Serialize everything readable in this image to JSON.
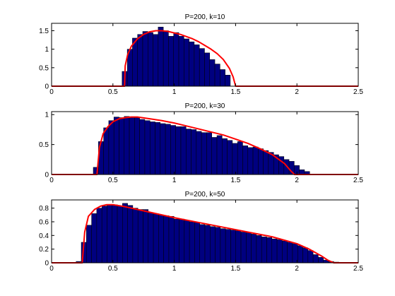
{
  "chart_data": [
    {
      "type": "bar",
      "title": "P=200, k=10",
      "xlim": [
        0,
        2.5
      ],
      "ylim": [
        0,
        1.7
      ],
      "xticks": [
        0,
        0.5,
        1,
        1.5,
        2,
        2.5
      ],
      "xtick_labels": [
        "0",
        "0.5",
        "1",
        "1.5",
        "2",
        "2.5"
      ],
      "yticks": [
        0,
        0.5,
        1,
        1.5
      ],
      "ytick_labels": [
        "0",
        "0.5",
        "1",
        "1.5"
      ],
      "bar_color": "#000080",
      "curve_color": "#ff0000",
      "bins": {
        "start": 0.575,
        "width": 0.042,
        "values": [
          0.4,
          1.0,
          1.3,
          1.4,
          1.48,
          1.45,
          1.4,
          1.6,
          1.5,
          1.35,
          1.45,
          1.35,
          1.28,
          1.2,
          1.12,
          1.02,
          0.9,
          0.72,
          0.6,
          0.45,
          0.3
        ]
      },
      "curve": {
        "x": [
          0.595,
          0.6,
          0.62,
          0.65,
          0.7,
          0.75,
          0.8,
          0.85,
          0.9,
          0.95,
          1.0,
          1.05,
          1.1,
          1.15,
          1.2,
          1.25,
          1.3,
          1.35,
          1.4,
          1.45,
          1.48,
          1.5
        ],
        "y": [
          0.0,
          0.55,
          0.85,
          1.08,
          1.28,
          1.4,
          1.47,
          1.5,
          1.5,
          1.48,
          1.44,
          1.4,
          1.34,
          1.28,
          1.2,
          1.1,
          1.0,
          0.88,
          0.72,
          0.48,
          0.25,
          0.0
        ]
      }
    },
    {
      "type": "bar",
      "title": "P=200, k=30",
      "xlim": [
        0,
        2.5
      ],
      "ylim": [
        0,
        1.05
      ],
      "xticks": [
        0,
        0.5,
        1,
        1.5,
        2,
        2.5
      ],
      "xtick_labels": [
        "0",
        "0.5",
        "1",
        "1.5",
        "2",
        "2.5"
      ],
      "yticks": [
        0,
        0.5,
        1
      ],
      "ytick_labels": [
        "0",
        "0.5",
        "1"
      ],
      "bar_color": "#000080",
      "curve_color": "#ff0000",
      "bins": {
        "start": 0.34,
        "width": 0.042,
        "values": [
          0.12,
          0.55,
          0.78,
          0.9,
          0.96,
          0.95,
          0.97,
          0.96,
          0.95,
          0.92,
          0.9,
          0.88,
          0.87,
          0.85,
          0.84,
          0.82,
          0.8,
          0.8,
          0.76,
          0.75,
          0.72,
          0.7,
          0.7,
          0.62,
          0.65,
          0.6,
          0.57,
          0.52,
          0.55,
          0.48,
          0.45,
          0.46,
          0.43,
          0.4,
          0.37,
          0.33,
          0.3,
          0.25,
          0.22,
          0.15,
          0.08,
          0.05
        ]
      },
      "curve": {
        "x": [
          0.37,
          0.39,
          0.42,
          0.46,
          0.5,
          0.55,
          0.6,
          0.65,
          0.7,
          0.8,
          0.9,
          1.0,
          1.1,
          1.2,
          1.3,
          1.4,
          1.5,
          1.6,
          1.7,
          1.8,
          1.9,
          1.95,
          1.98
        ],
        "y": [
          0.0,
          0.45,
          0.68,
          0.8,
          0.88,
          0.93,
          0.95,
          0.96,
          0.96,
          0.93,
          0.9,
          0.86,
          0.81,
          0.76,
          0.71,
          0.66,
          0.59,
          0.52,
          0.43,
          0.33,
          0.18,
          0.06,
          0.0
        ]
      }
    },
    {
      "type": "bar",
      "title": "P=200, k=50",
      "xlim": [
        0,
        2.5
      ],
      "ylim": [
        0,
        0.92
      ],
      "xticks": [
        0,
        0.5,
        1,
        1.5,
        2,
        2.5
      ],
      "xtick_labels": [
        "0",
        "0.5",
        "1",
        "1.5",
        "2",
        "2.5"
      ],
      "yticks": [
        0,
        0.2,
        0.4,
        0.6,
        0.8
      ],
      "ytick_labels": [
        "0",
        "0.2",
        "0.4",
        "0.6",
        "0.8"
      ],
      "bar_color": "#000080",
      "curve_color": "#ff0000",
      "bins": {
        "start": 0.2,
        "width": 0.042,
        "values": [
          0.02,
          0.3,
          0.55,
          0.72,
          0.8,
          0.83,
          0.85,
          0.85,
          0.83,
          0.87,
          0.84,
          0.8,
          0.78,
          0.78,
          0.73,
          0.72,
          0.7,
          0.69,
          0.68,
          0.64,
          0.64,
          0.62,
          0.6,
          0.59,
          0.56,
          0.55,
          0.53,
          0.52,
          0.5,
          0.49,
          0.48,
          0.47,
          0.45,
          0.44,
          0.42,
          0.4,
          0.38,
          0.37,
          0.35,
          0.34,
          0.32,
          0.3,
          0.28,
          0.25,
          0.22,
          0.18,
          0.12,
          0.08,
          0.04,
          0.02,
          0.01
        ]
      },
      "curve": {
        "x": [
          0.25,
          0.27,
          0.3,
          0.35,
          0.4,
          0.45,
          0.5,
          0.6,
          0.7,
          0.8,
          1.0,
          1.2,
          1.4,
          1.6,
          1.8,
          2.0,
          2.1,
          2.2,
          2.25,
          2.3
        ],
        "y": [
          0.0,
          0.45,
          0.68,
          0.78,
          0.83,
          0.85,
          0.85,
          0.82,
          0.78,
          0.74,
          0.66,
          0.59,
          0.52,
          0.45,
          0.38,
          0.28,
          0.2,
          0.1,
          0.04,
          0.0
        ]
      }
    }
  ]
}
